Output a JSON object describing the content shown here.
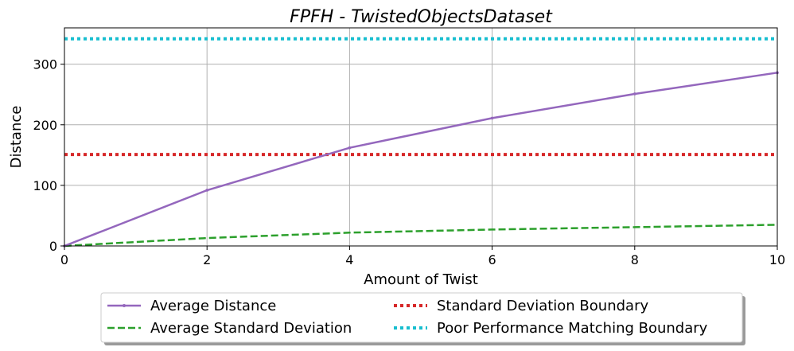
{
  "chart_data": {
    "type": "line",
    "title": "FPFH - TwistedObjectsDataset",
    "xlabel": "Amount of Twist",
    "ylabel": "Distance",
    "xlim": [
      0,
      10
    ],
    "ylim": [
      0,
      360
    ],
    "xticks": [
      0,
      2,
      4,
      6,
      8,
      10
    ],
    "yticks": [
      0,
      100,
      200,
      300
    ],
    "grid": true,
    "legend_position": "below plot, two columns",
    "x": [
      0,
      2,
      4,
      6,
      8,
      10
    ],
    "series": [
      {
        "name": "Average Distance",
        "style": "solid-marker",
        "color": "#9467bd",
        "values": [
          0,
          92,
          162,
          211,
          251,
          286
        ]
      },
      {
        "name": "Average Standard Deviation",
        "style": "dashed",
        "color": "#2ca02c",
        "values": [
          0,
          13,
          22,
          27,
          31,
          35
        ]
      },
      {
        "name": "Standard Deviation Boundary",
        "style": "dotted",
        "color": "#d62728",
        "values": [
          151,
          151,
          151,
          151,
          151,
          151
        ]
      },
      {
        "name": "Poor Performance Matching Boundary",
        "style": "dotted",
        "color": "#17becf",
        "values": [
          342,
          342,
          342,
          342,
          342,
          342
        ]
      }
    ]
  }
}
